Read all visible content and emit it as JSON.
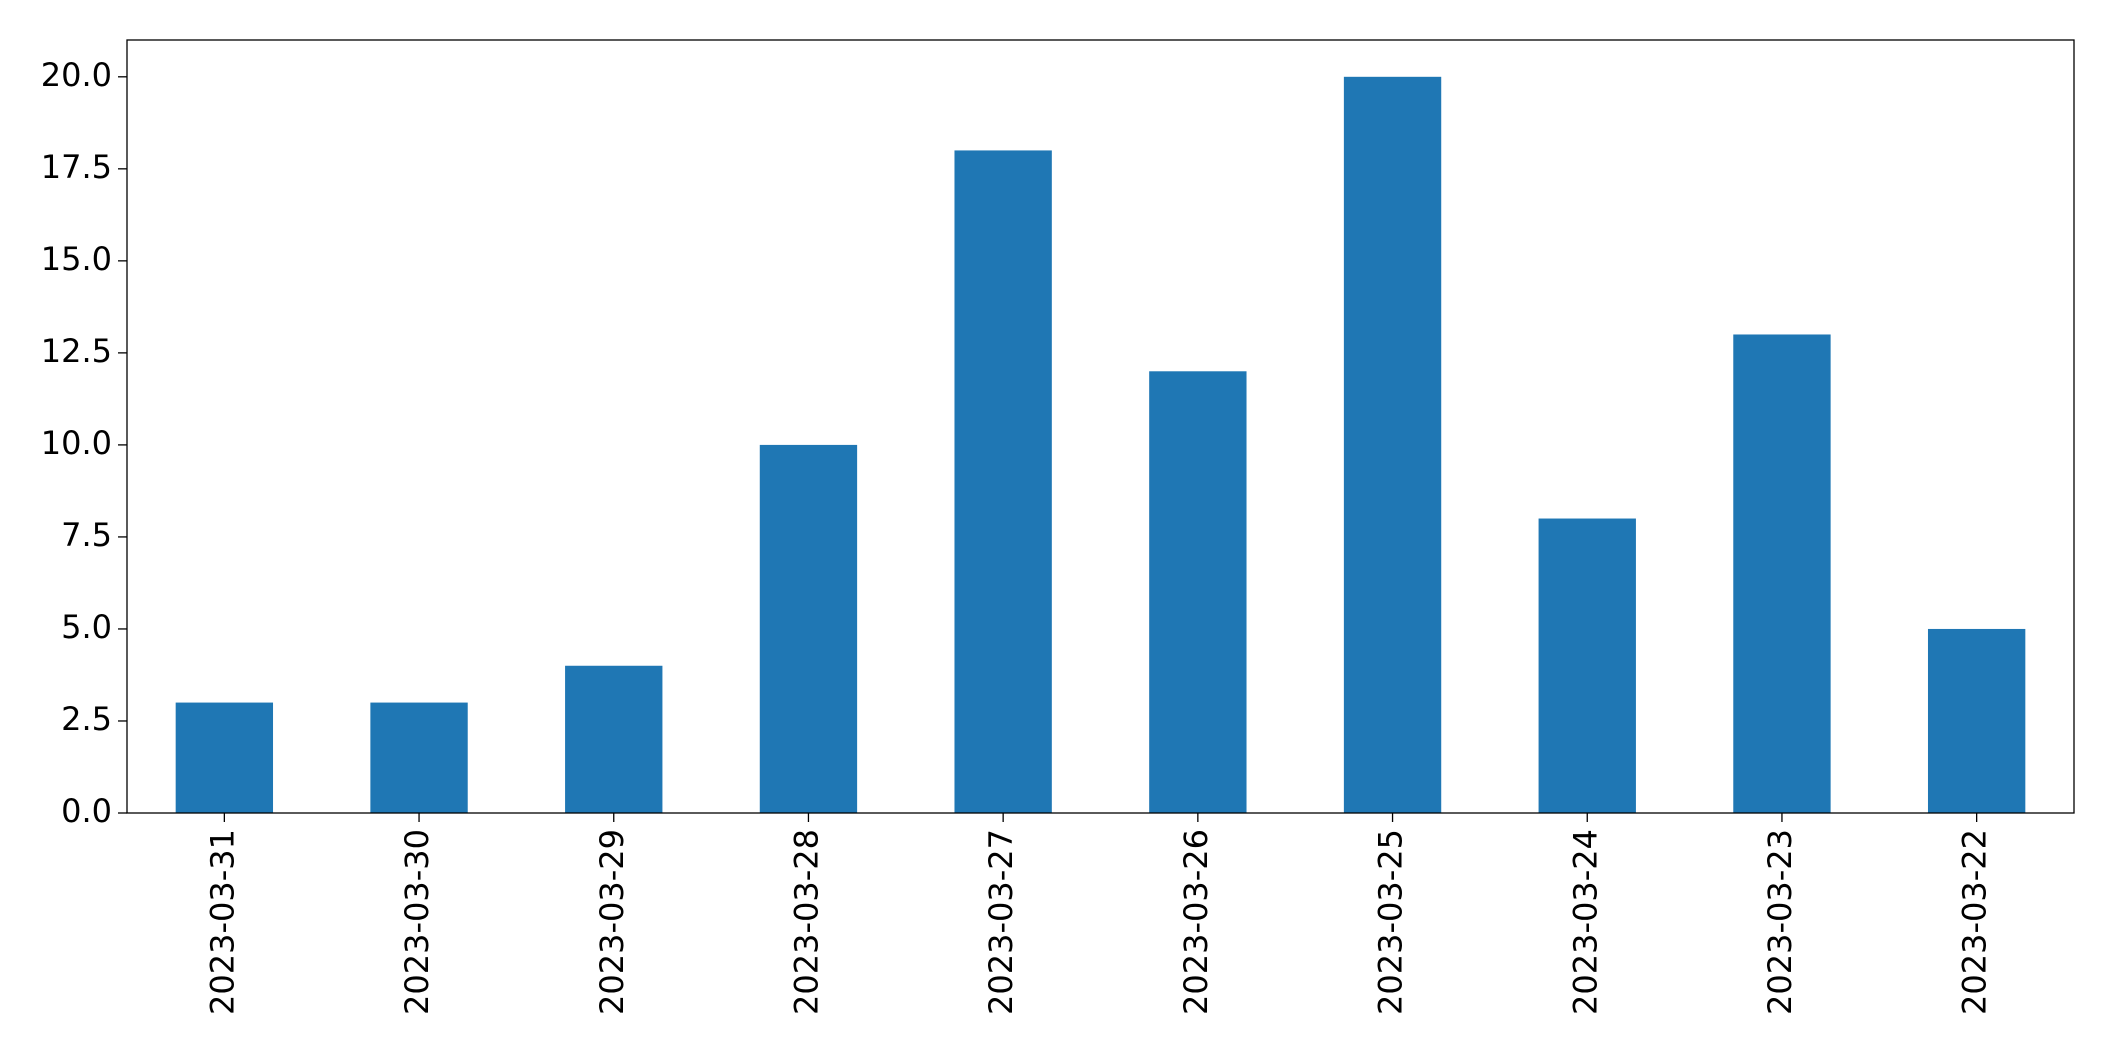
{
  "chart_data": {
    "type": "bar",
    "categories": [
      "2023-03-31",
      "2023-03-30",
      "2023-03-29",
      "2023-03-28",
      "2023-03-27",
      "2023-03-26",
      "2023-03-25",
      "2023-03-24",
      "2023-03-23",
      "2023-03-22"
    ],
    "values": [
      3,
      3,
      4,
      10,
      18,
      12,
      20,
      8,
      13,
      5
    ],
    "color": "#1f77b4",
    "ylim": [
      0,
      21
    ],
    "yticks": [
      {
        "value": 0,
        "label": "0.0"
      },
      2.5,
      {
        "value": 5,
        "label": "5.0"
      },
      7.5,
      {
        "value": 10,
        "label": "10.0"
      },
      12.5,
      {
        "value": 15,
        "label": "15.0"
      },
      17.5,
      {
        "value": 20,
        "label": "20.0"
      }
    ],
    "grid": false
  }
}
